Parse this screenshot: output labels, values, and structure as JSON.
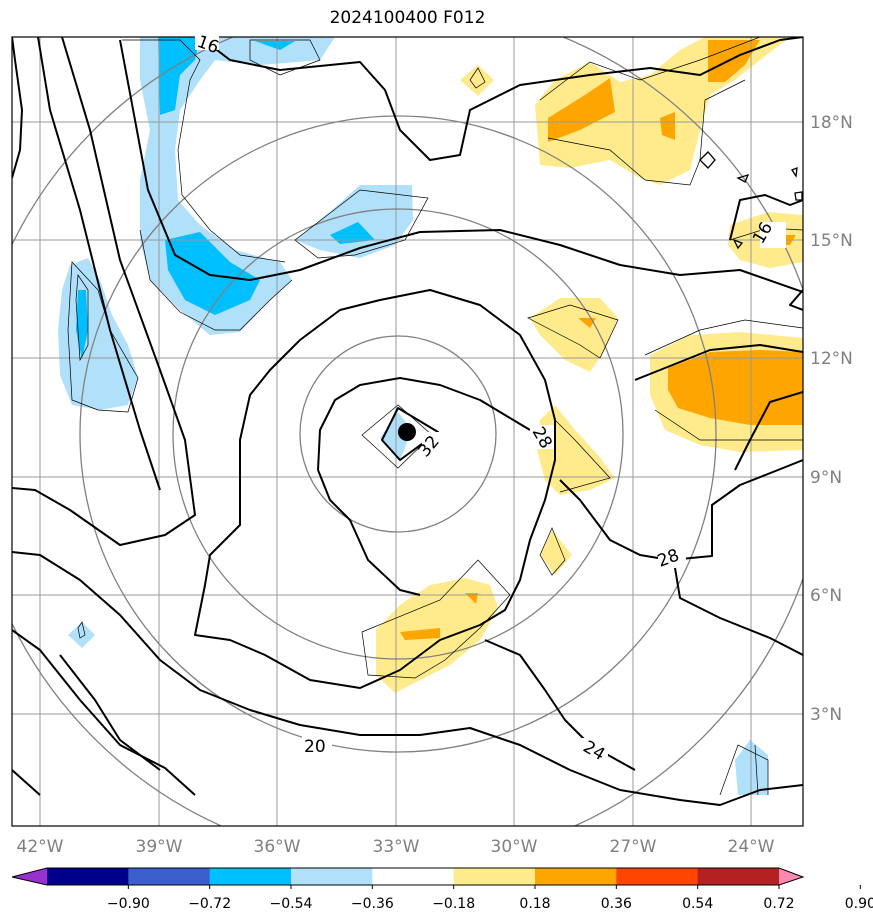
{
  "title": "2024100400 F012",
  "axes": {
    "lon_labels": [
      "42°W",
      "39°W",
      "36°W",
      "33°W",
      "30°W",
      "27°W",
      "24°W"
    ],
    "lat_labels": [
      "18°N",
      "15°N",
      "12°N",
      "9°N",
      "6°N",
      "3°N"
    ],
    "label_color": "#808080"
  },
  "contour_labels": [
    "16",
    "32",
    "28",
    "28",
    "20",
    "24",
    "16"
  ],
  "colorbar": {
    "ticks": [
      "−0.90",
      "−0.72",
      "−0.54",
      "−0.36",
      "−0.18",
      "0.18",
      "0.36",
      "0.54",
      "0.72",
      "0.90"
    ],
    "colors": [
      "#9b30d0",
      "#00008b",
      "#3a5fcd",
      "#00bfff",
      "#b0e0fa",
      "#ffffff",
      "#ffeb8c",
      "#ffa500",
      "#ff4500",
      "#b22222",
      "#ff88b0"
    ]
  },
  "center_marker": "storm-center-dot"
}
